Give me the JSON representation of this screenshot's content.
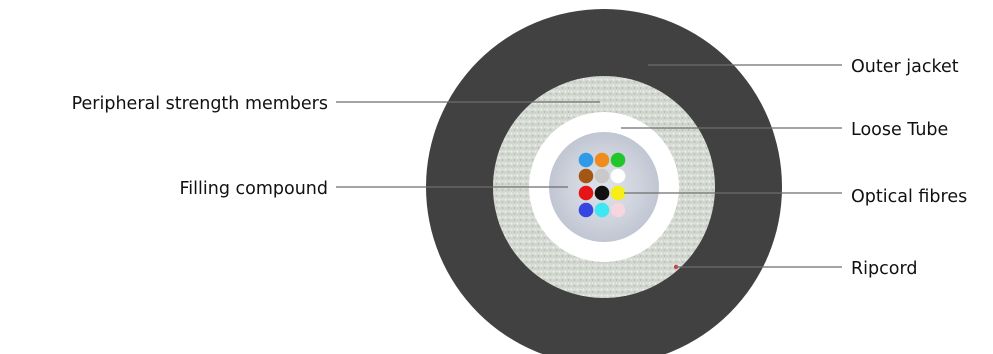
{
  "labels": {
    "outer_jacket": "Outer jacket",
    "loose_tube": "Loose Tube",
    "optical_fibres": "Optical fibres",
    "ripcord": "Ripcord",
    "peripheral_strength_members": "Peripheral strength members",
    "filling_compound": "Filling compound"
  },
  "colors": {
    "outer_jacket": "#414141",
    "strength_members": "#d6dbd5",
    "loose_tube": "#ffffff",
    "filling_compound": "#c9ced8",
    "ripcord": "#d04040"
  },
  "fibres": [
    {
      "color": "#2f9ae8"
    },
    {
      "color": "#f08c1e"
    },
    {
      "color": "#21c72a"
    },
    {
      "color": "#a45714"
    },
    {
      "color": "#c9c9c9"
    },
    {
      "color": "#ffffff"
    },
    {
      "color": "#e61414"
    },
    {
      "color": "#111111"
    },
    {
      "color": "#f6ee14"
    },
    {
      "color": "#3746e0"
    },
    {
      "color": "#3ee8f2"
    },
    {
      "color": "#f4d6dc"
    }
  ]
}
